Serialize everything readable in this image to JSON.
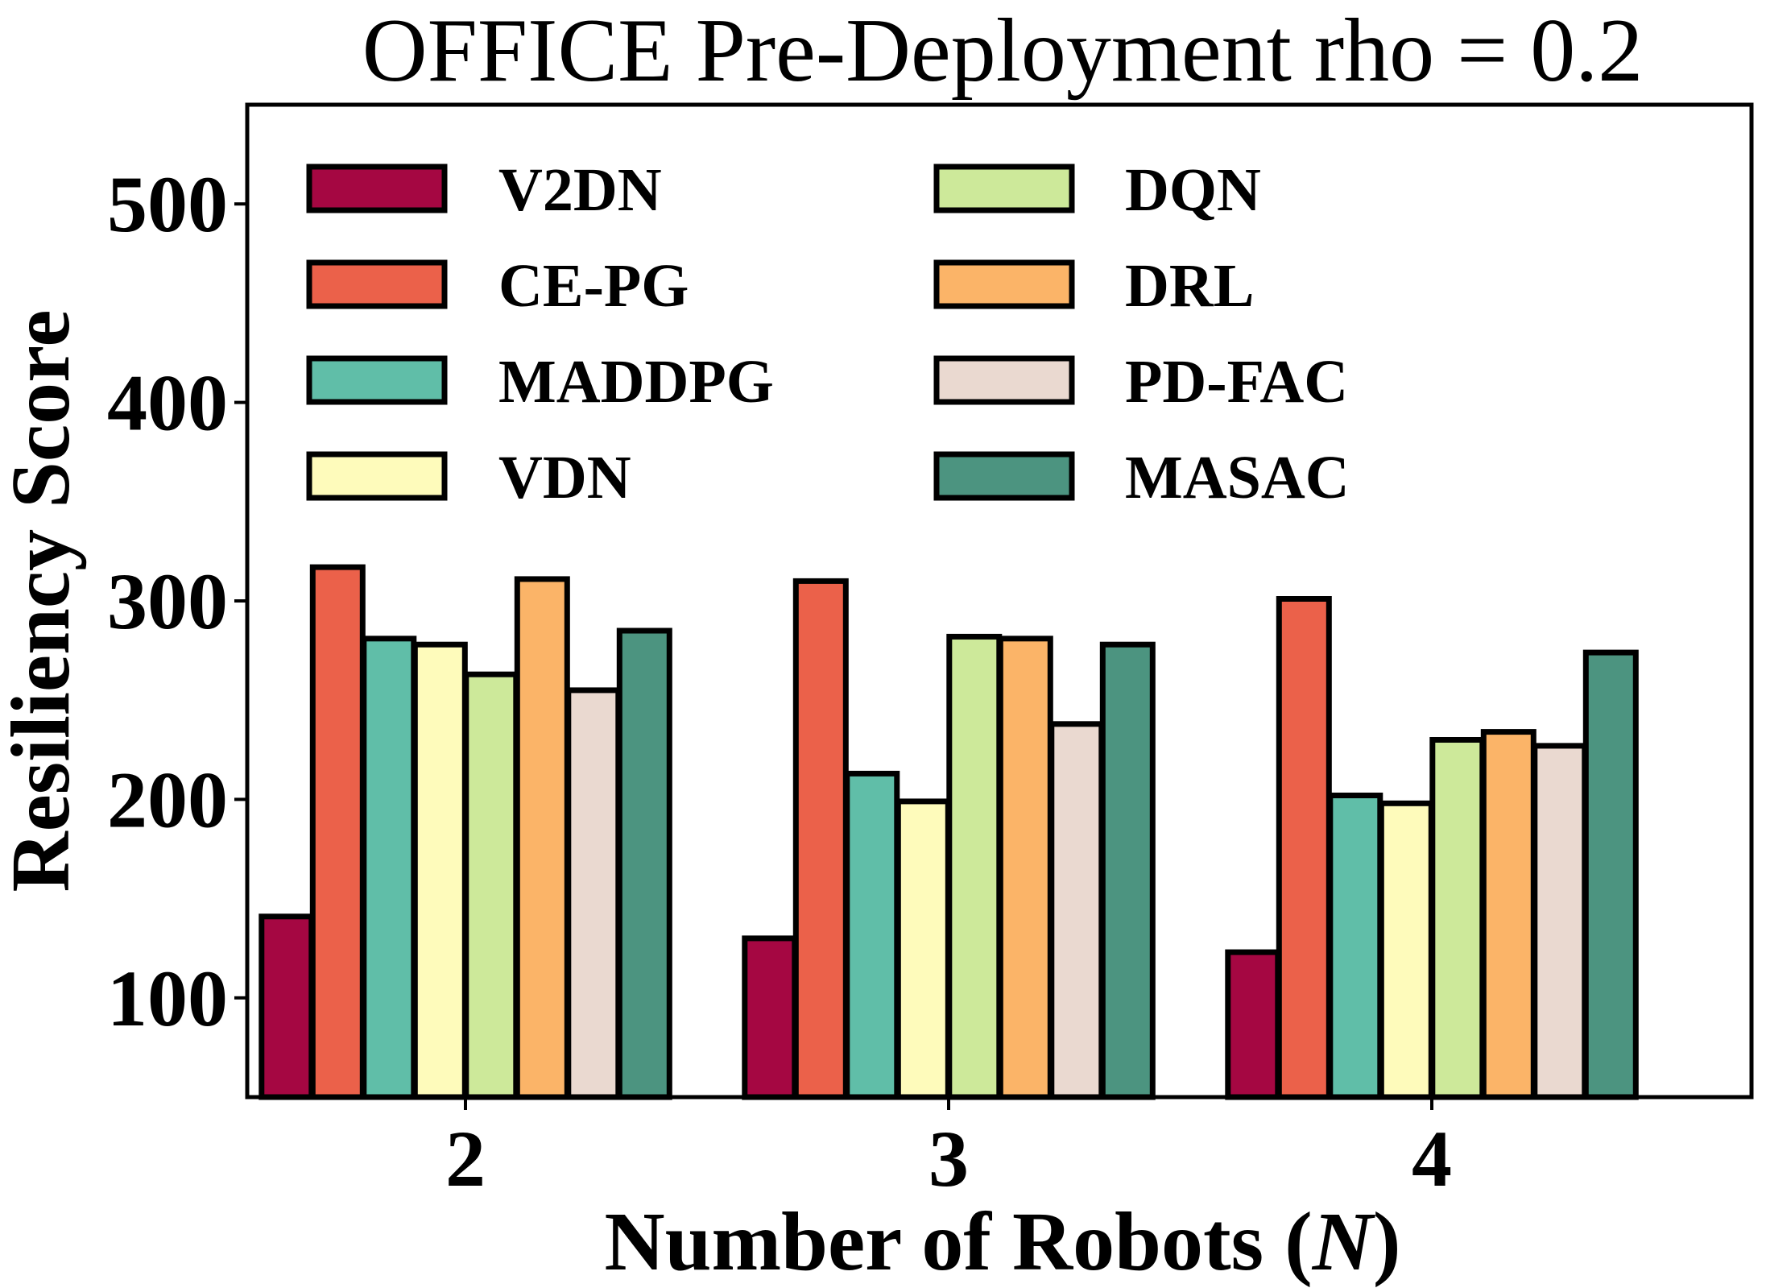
{
  "chart_data": {
    "type": "bar",
    "title": "OFFICE Pre-Deployment rho = 0.2",
    "xlabel_main": "Number of Robots (",
    "xlabel_var": "N",
    "xlabel_close": ")",
    "ylabel": "Resiliency Score",
    "categories": [
      "2",
      "3",
      "4"
    ],
    "ylim": [
      50,
      550
    ],
    "yticks": [
      100,
      200,
      300,
      400,
      500
    ],
    "grid": false,
    "legend_position": "top-left, two columns",
    "series": [
      {
        "name": "V2DN",
        "color": "#a50742",
        "values": [
          141,
          130,
          123
        ]
      },
      {
        "name": "CE-PG",
        "color": "#eb614a",
        "values": [
          317,
          310,
          301
        ]
      },
      {
        "name": "MADDPG",
        "color": "#60bea8",
        "values": [
          281,
          213,
          202
        ]
      },
      {
        "name": "VDN",
        "color": "#fefbbb",
        "values": [
          278,
          199,
          198
        ]
      },
      {
        "name": "DQN",
        "color": "#cde99a",
        "values": [
          263,
          282,
          230
        ]
      },
      {
        "name": "DRL",
        "color": "#fbb468",
        "values": [
          311,
          281,
          234
        ]
      },
      {
        "name": "PD-FAC",
        "color": "#ead9d0",
        "values": [
          255,
          238,
          227
        ]
      },
      {
        "name": "MASAC",
        "color": "#4c9480",
        "values": [
          285,
          278,
          274
        ]
      }
    ]
  }
}
